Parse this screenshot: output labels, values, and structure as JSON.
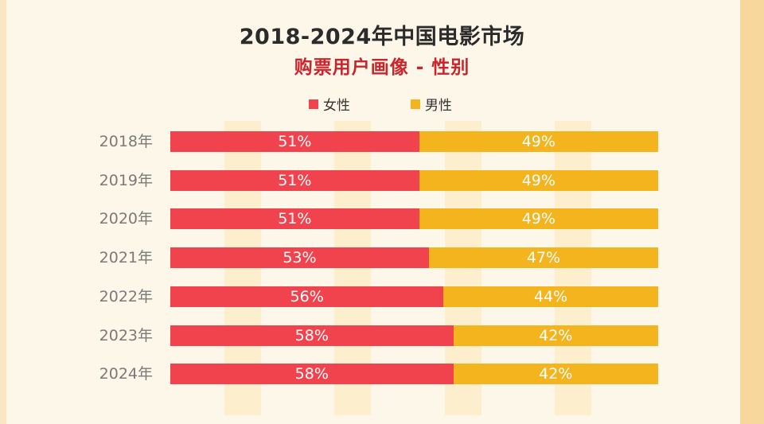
{
  "chart_data": {
    "type": "bar",
    "orientation": "horizontal",
    "stacked": true,
    "title": "2018-2024年中国电影市场",
    "subtitle": "购票用户画像 - 性别",
    "categories": [
      "2018年",
      "2019年",
      "2020年",
      "2021年",
      "2022年",
      "2023年",
      "2024年"
    ],
    "series": [
      {
        "name": "女性",
        "color": "#f1434e",
        "values": [
          51,
          51,
          51,
          53,
          56,
          58,
          58
        ],
        "labels": [
          "51%",
          "51%",
          "51%",
          "53%",
          "56%",
          "58%",
          "58%"
        ]
      },
      {
        "name": "男性",
        "color": "#f3b41e",
        "values": [
          49,
          49,
          49,
          47,
          44,
          42,
          42
        ],
        "labels": [
          "49%",
          "49%",
          "49%",
          "47%",
          "44%",
          "42%",
          "42%"
        ]
      }
    ],
    "xlim": [
      0,
      100
    ],
    "legend_position": "top-center"
  }
}
